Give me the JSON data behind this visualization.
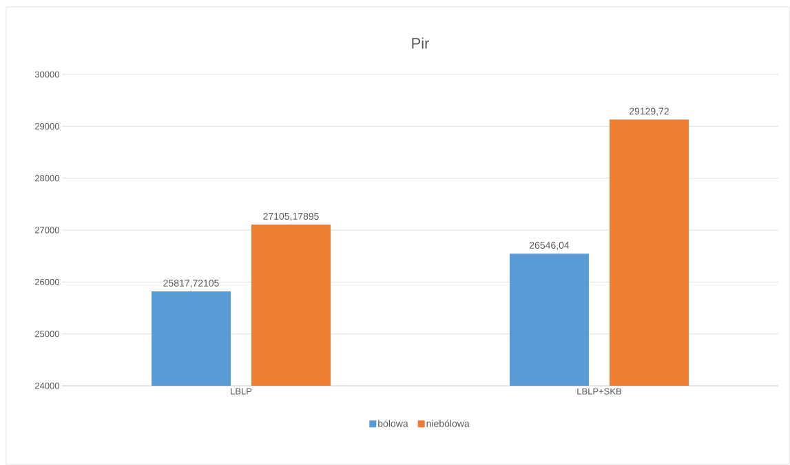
{
  "chart_data": {
    "type": "bar",
    "title": "Pir",
    "categories": [
      "LBLP",
      "LBLP+SKB"
    ],
    "series": [
      {
        "name": "bólowa",
        "color": "#5b9bd5",
        "values": [
          25817.72105,
          26546.04
        ],
        "value_labels": [
          "25817,72105",
          "26546,04"
        ]
      },
      {
        "name": "niebólowa",
        "color": "#ed7d31",
        "values": [
          27105.17895,
          29129.72
        ],
        "value_labels": [
          "27105,17895",
          "29129,72"
        ]
      }
    ],
    "ylim": [
      24000,
      30000
    ],
    "yticks": [
      24000,
      25000,
      26000,
      27000,
      28000,
      29000,
      30000
    ],
    "grid": "y",
    "legend": "bottom"
  }
}
